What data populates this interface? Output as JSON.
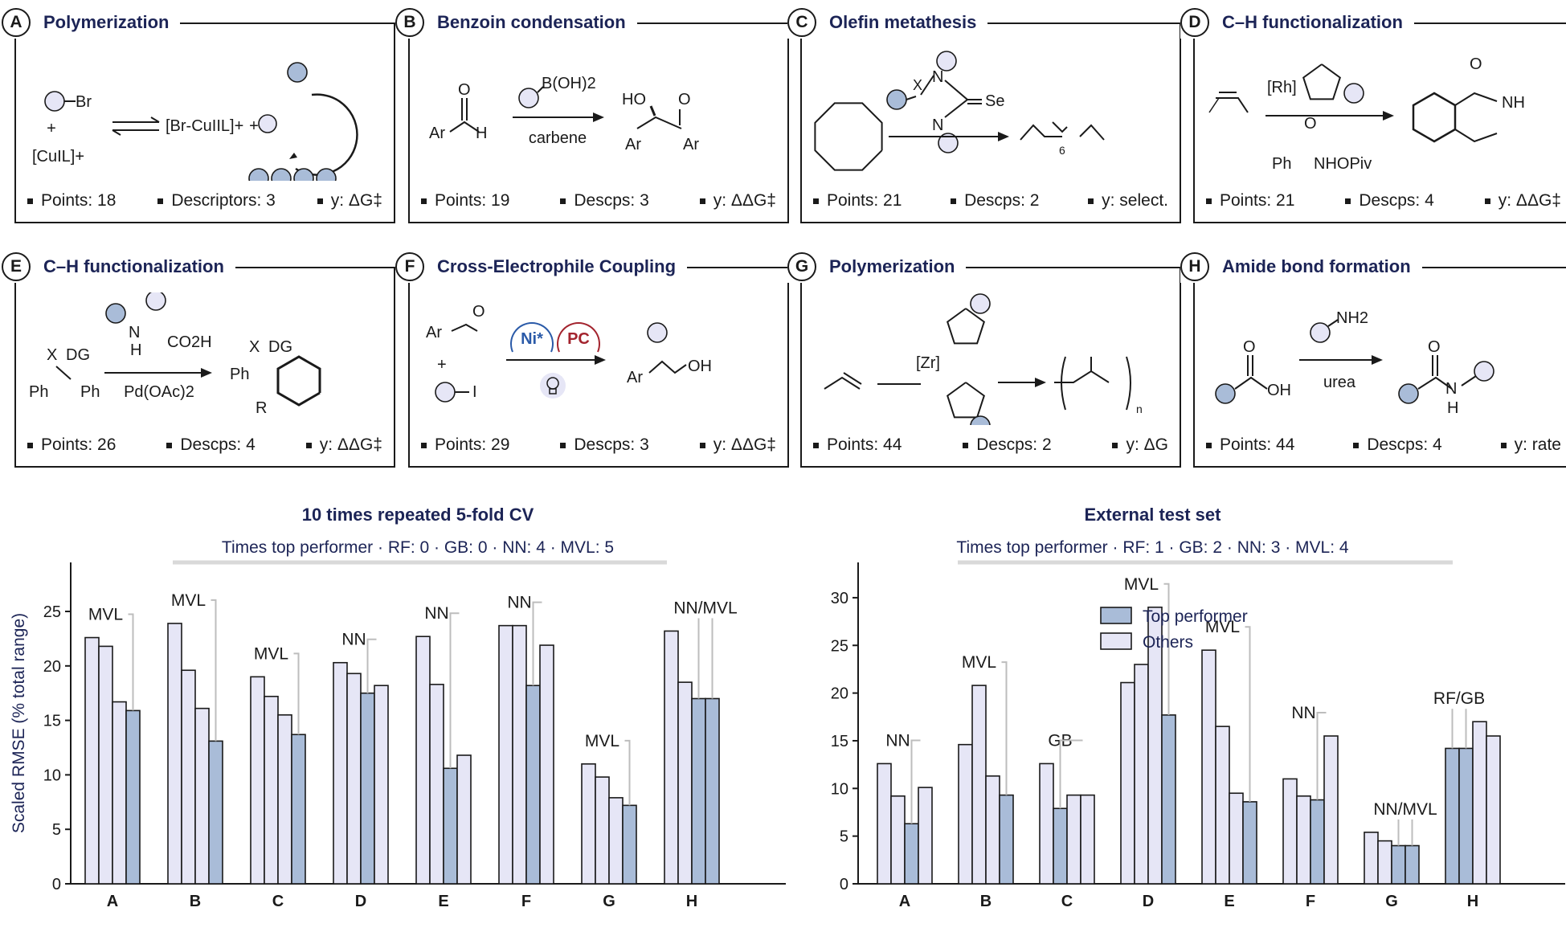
{
  "panels": [
    {
      "letter": "A",
      "title": "Polymerization",
      "stats": [
        "Points: 18",
        "Descriptors: 3",
        "y: ΔG‡"
      ],
      "scheme": {
        "reactant1": "Br",
        "plus": "+",
        "reactant2": "[CuIL]+",
        "product": "[Br-CuIIL]+",
        "plus2": "+"
      }
    },
    {
      "letter": "B",
      "title": "Benzoin condensation",
      "stats": [
        "Points: 19",
        "Descps: 3",
        "y: ΔΔG‡"
      ],
      "scheme": {
        "reagent": "B(OH)2",
        "catalyst": "carbene",
        "sm_ar": "Ar",
        "sm_o": "O",
        "sm_h": "H",
        "p_ho": "HO",
        "p_o": "O",
        "p_ar1": "Ar",
        "p_ar2": "Ar"
      }
    },
    {
      "letter": "C",
      "title": "Olefin metathesis",
      "stats": [
        "Points: 21",
        "Descps: 2",
        "y: select."
      ],
      "scheme": {
        "x": "X",
        "n1": "N",
        "n2": "N",
        "se": "Se",
        "sub": "6"
      }
    },
    {
      "letter": "D",
      "title": "C–H functionalization",
      "stats": [
        "Points: 21",
        "Descps: 4",
        "y: ΔΔG‡"
      ],
      "scheme": {
        "rh": "[Rh]",
        "reagent": "Ph",
        "reagent2": "NHOPiv",
        "o1": "O",
        "o2": "O",
        "nh": "NH"
      }
    },
    {
      "letter": "E",
      "title": "C–H functionalization",
      "stats": [
        "Points: 26",
        "Descps: 4",
        "y: ΔΔG‡"
      ],
      "scheme": {
        "x": "X",
        "dg": "DG",
        "ph1": "Ph",
        "ph2": "Ph",
        "n": "N",
        "h": "H",
        "co2h": "CO2H",
        "cat": "Pd(OAc)2",
        "px": "X",
        "pdg": "DG",
        "pph": "Ph",
        "pr": "R"
      }
    },
    {
      "letter": "F",
      "title": "Cross-Electrophile Coupling",
      "stats": [
        "Points: 29",
        "Descps: 3",
        "y: ΔΔG‡"
      ],
      "scheme": {
        "ar": "Ar",
        "o": "O",
        "plus": "+",
        "i": "I",
        "ni": "Ni*",
        "pc": "PC",
        "par": "Ar",
        "poh": "OH"
      }
    },
    {
      "letter": "G",
      "title": "Polymerization",
      "stats": [
        "Points: 44",
        "Descps: 2",
        "y: ΔG"
      ],
      "scheme": {
        "zr": "[Zr]",
        "n": "n"
      }
    },
    {
      "letter": "H",
      "title": "Amide bond formation",
      "stats": [
        "Points: 44",
        "Descps: 4",
        "y: rate"
      ],
      "scheme": {
        "nh2": "NH2",
        "o": "O",
        "oh": "OH",
        "urea": "urea",
        "po": "O",
        "pn": "N",
        "ph": "H"
      }
    }
  ],
  "colors": {
    "top": "#a9bcd8",
    "others": "#e6e6f6",
    "stroke": "#1a1a1a",
    "leader": "#bdbdbd",
    "title": "#1c2456"
  },
  "chart_data": [
    {
      "type": "bar",
      "title": "10 times repeated 5-fold CV",
      "subtitle": "Times top performer  ·  RF: 0  ·  GB: 0  ·  NN: 4  ·  MVL: 5",
      "ylabel": "Scaled RMSE (% total range)",
      "ylim": [
        0,
        29.5
      ],
      "yticks": [
        0,
        5,
        10,
        15,
        20,
        25
      ],
      "categories": [
        "A",
        "B",
        "C",
        "D",
        "E",
        "F",
        "G",
        "H"
      ],
      "series": [
        {
          "name": "RF",
          "values": [
            22.6,
            23.9,
            19.0,
            20.3,
            22.7,
            23.7,
            11.0,
            23.2
          ]
        },
        {
          "name": "GB",
          "values": [
            21.8,
            19.6,
            17.2,
            19.3,
            18.3,
            23.7,
            9.8,
            18.5
          ]
        },
        {
          "name": "NN",
          "values": [
            16.7,
            16.1,
            15.5,
            17.5,
            10.6,
            18.2,
            7.9,
            17.0
          ]
        },
        {
          "name": "MVL",
          "values": [
            15.9,
            13.1,
            13.7,
            18.2,
            11.8,
            21.9,
            7.2,
            17.0
          ]
        }
      ],
      "top": [
        [
          "MVL"
        ],
        [
          "MVL"
        ],
        [
          "MVL"
        ],
        [
          "NN"
        ],
        [
          "NN"
        ],
        [
          "NN"
        ],
        [
          "MVL"
        ],
        [
          "NN",
          "MVL"
        ]
      ],
      "annotations": [
        "MVL",
        "MVL",
        "MVL",
        "NN",
        "NN",
        "NN",
        "MVL",
        "NN/MVL"
      ]
    },
    {
      "type": "bar",
      "title": "External test set",
      "subtitle": "Times top performer  ·  RF: 1  ·  GB: 2  ·  NN: 3  ·  MVL: 4",
      "ylabel": "",
      "ylim": [
        0,
        33.7
      ],
      "yticks": [
        0,
        5,
        10,
        15,
        20,
        25,
        30
      ],
      "categories": [
        "A",
        "B",
        "C",
        "D",
        "E",
        "F",
        "G",
        "H"
      ],
      "series": [
        {
          "name": "RF",
          "values": [
            12.6,
            14.6,
            12.6,
            21.1,
            24.5,
            11.0,
            5.4,
            14.2
          ]
        },
        {
          "name": "GB",
          "values": [
            9.2,
            20.8,
            7.9,
            23.0,
            16.5,
            9.2,
            4.5,
            14.2
          ]
        },
        {
          "name": "NN",
          "values": [
            6.3,
            11.3,
            9.3,
            29.0,
            9.5,
            8.8,
            4.0,
            17.0
          ]
        },
        {
          "name": "MVL",
          "values": [
            10.1,
            9.3,
            9.3,
            17.7,
            8.6,
            15.5,
            4.0,
            15.5
          ]
        }
      ],
      "top": [
        [
          "NN"
        ],
        [
          "MVL"
        ],
        [
          "GB"
        ],
        [
          "MVL"
        ],
        [
          "MVL"
        ],
        [
          "NN"
        ],
        [
          "NN",
          "MVL"
        ],
        [
          "RF",
          "GB"
        ]
      ],
      "annotations": [
        "NN",
        "MVL",
        "GB",
        "MVL",
        "MVL",
        "NN",
        "NN/MVL",
        "RF/GB"
      ],
      "legend": {
        "position": "top-right",
        "top_label": "Top performer",
        "others_label": "Others"
      }
    }
  ]
}
